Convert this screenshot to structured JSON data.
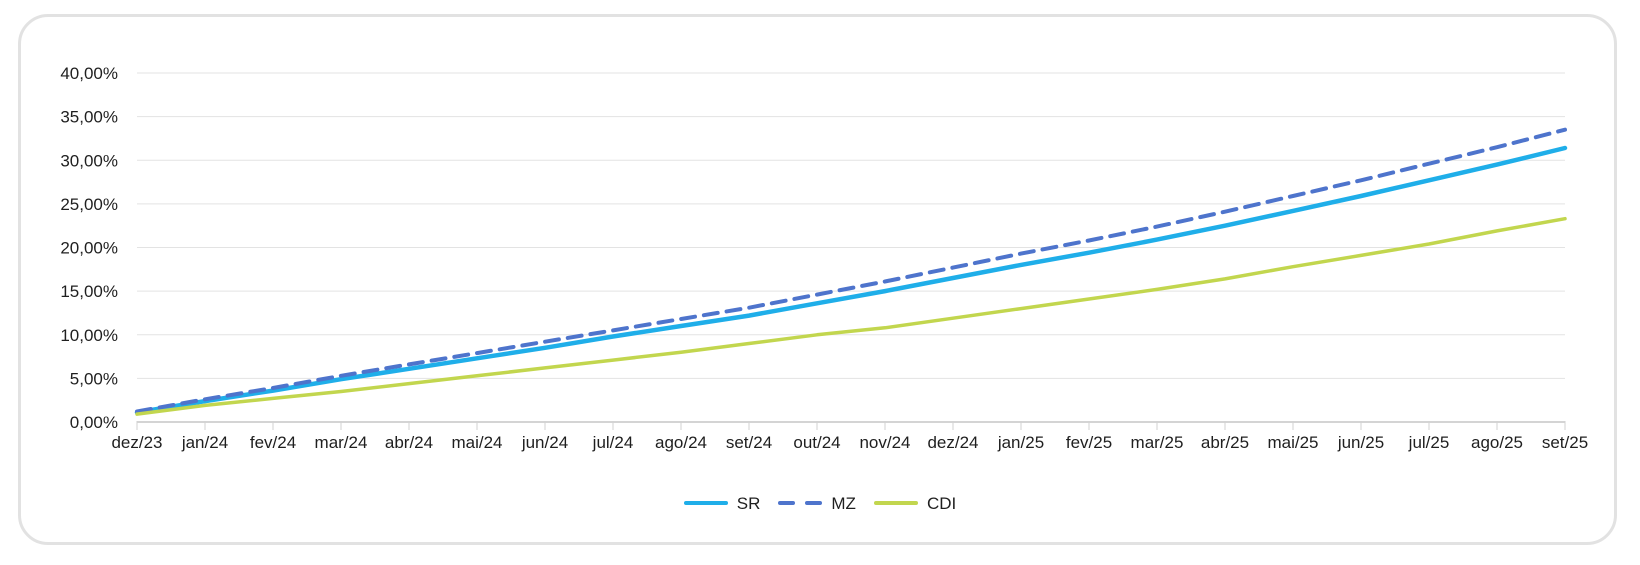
{
  "window": {
    "background_color": "#FFFFFF",
    "card_border_color": "#E2E2E2"
  },
  "chart_data": {
    "type": "line",
    "title": "",
    "xlabel": "",
    "ylabel": "",
    "grid": true,
    "legend_position": "bottom",
    "gridline_color": "#E3E3E3",
    "axis_line_color": "#C6C6C6",
    "tick_mark_color": "#D2D2D2",
    "text_color": "#1F1F1F",
    "categories": [
      "dez/23",
      "jan/24",
      "fev/24",
      "mar/24",
      "abr/24",
      "mai/24",
      "jun/24",
      "jul/24",
      "ago/24",
      "set/24",
      "out/24",
      "nov/24",
      "dez/24",
      "jan/25",
      "fev/25",
      "mar/25",
      "abr/25",
      "mai/25",
      "jun/25",
      "jul/25",
      "ago/25",
      "set/25"
    ],
    "y_axis": {
      "min": 0,
      "max": 40,
      "step": 5,
      "tick_labels": [
        "0,00%",
        "5,00%",
        "10,00%",
        "15,00%",
        "20,00%",
        "25,00%",
        "30,00%",
        "35,00%",
        "40,00%"
      ],
      "format": "percent-comma"
    },
    "series": [
      {
        "name": "SR",
        "color": "#1FAEE9",
        "line_style": "solid",
        "line_width": 4.5,
        "values": [
          1.1,
          2.4,
          3.6,
          4.9,
          6.1,
          7.3,
          8.5,
          9.8,
          11.0,
          12.2,
          13.6,
          15.0,
          16.5,
          18.0,
          19.4,
          20.9,
          22.5,
          24.2,
          25.9,
          27.7,
          29.5,
          31.4
        ]
      },
      {
        "name": "MZ",
        "color": "#4E74CC",
        "line_style": "dashed",
        "line_width": 4,
        "values": [
          1.2,
          2.6,
          3.9,
          5.3,
          6.6,
          7.9,
          9.2,
          10.5,
          11.8,
          13.1,
          14.6,
          16.1,
          17.7,
          19.3,
          20.8,
          22.4,
          24.1,
          25.9,
          27.7,
          29.6,
          31.5,
          33.5
        ]
      },
      {
        "name": "CDI",
        "color": "#C2D64E",
        "line_style": "solid",
        "line_width": 3.5,
        "values": [
          0.9,
          1.9,
          2.7,
          3.5,
          4.4,
          5.3,
          6.2,
          7.1,
          8.0,
          9.0,
          10.0,
          10.8,
          11.9,
          13.0,
          14.1,
          15.2,
          16.4,
          17.8,
          19.1,
          20.4,
          21.9,
          23.3
        ]
      }
    ]
  }
}
